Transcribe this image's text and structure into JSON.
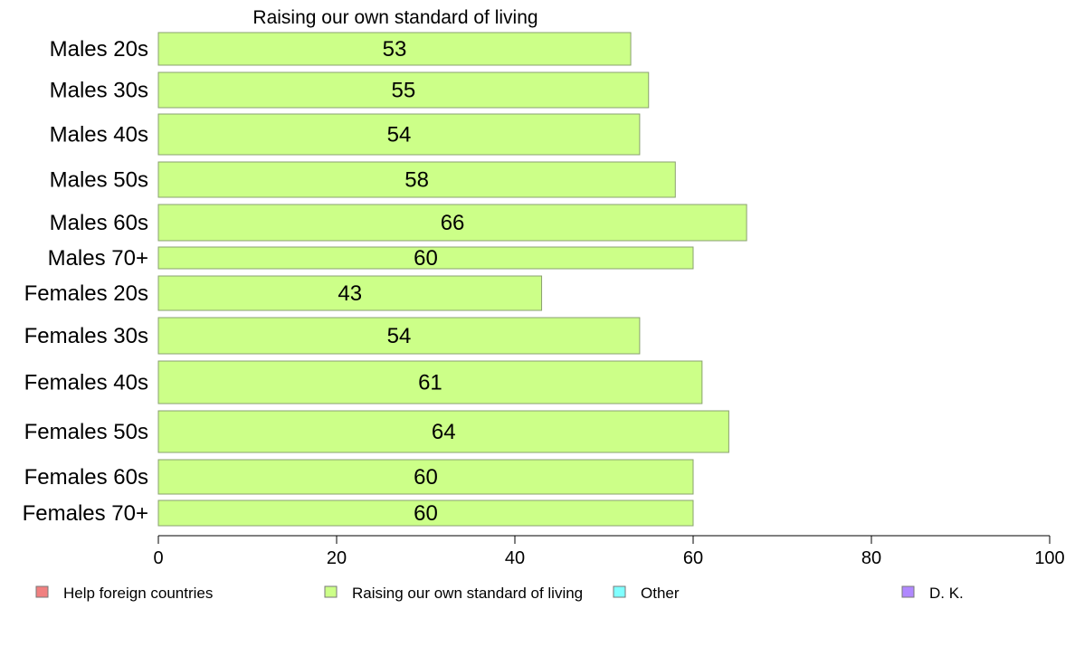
{
  "chart_data": {
    "type": "bar",
    "orientation": "horizontal",
    "title": "Raising our own standard of living",
    "categories": [
      "Males 20s",
      "Males 30s",
      "Males 40s",
      "Males 50s",
      "Males 60s",
      "Males 70+",
      "Females 20s",
      "Females 30s",
      "Females 40s",
      "Females 50s",
      "Females 60s",
      "Females 70+"
    ],
    "series": [
      {
        "name": "Raising our own standard of living",
        "color": "#ccff88",
        "values": [
          53,
          55,
          54,
          58,
          66,
          60,
          43,
          54,
          61,
          64,
          60,
          60
        ]
      }
    ],
    "xlim": [
      0,
      100
    ],
    "xticks": [
      0,
      20,
      40,
      60,
      80,
      100
    ],
    "grid": false,
    "legend_placement": "bottom",
    "legend": [
      {
        "label": "Help foreign countries",
        "color": "#f08080"
      },
      {
        "label": "Raising our own standard of living",
        "color": "#ccff88"
      },
      {
        "label": "Other",
        "color": "#80ffff"
      },
      {
        "label": "D. K.",
        "color": "#b088ff"
      }
    ]
  }
}
